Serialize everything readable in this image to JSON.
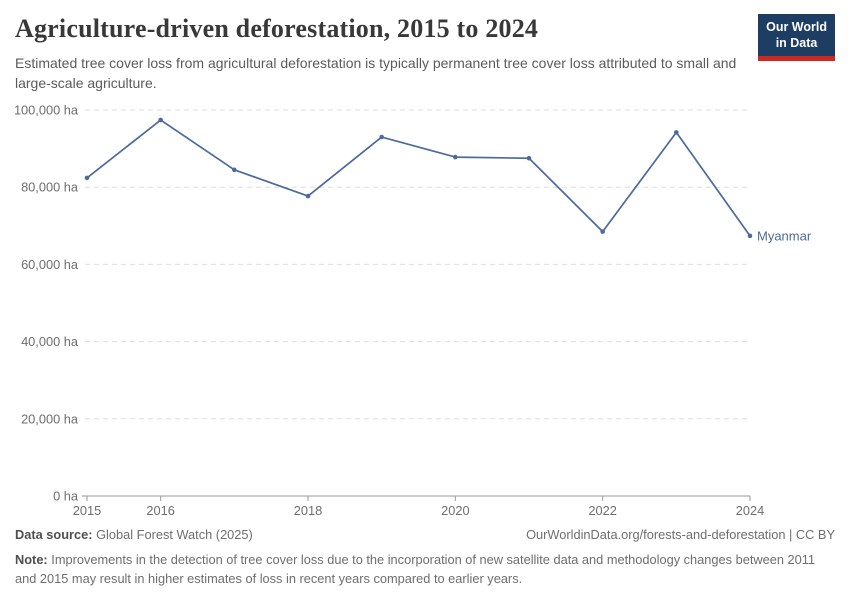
{
  "header": {
    "title": "Agriculture-driven deforestation, 2015 to 2024",
    "subtitle": "Estimated tree cover loss from agricultural deforestation is typically permanent tree cover loss attributed to small and large-scale agriculture.",
    "logo": {
      "line1": "Our World",
      "line2": "in Data"
    }
  },
  "chart_data": {
    "type": "line",
    "title": "Agriculture-driven deforestation, 2015 to 2024",
    "x": [
      2015,
      2016,
      2017,
      2018,
      2019,
      2020,
      2021,
      2022,
      2023,
      2024
    ],
    "series": [
      {
        "name": "Myanmar",
        "color": "#4c6a9c",
        "values": [
          82400,
          97400,
          84500,
          77700,
          93000,
          87800,
          87500,
          68500,
          94200,
          67400
        ]
      }
    ],
    "x_tick_labels": [
      2015,
      2016,
      2018,
      2020,
      2022,
      2024
    ],
    "y_ticks": [
      0,
      20000,
      40000,
      60000,
      80000,
      100000
    ],
    "y_unit": " ha",
    "ylim": [
      0,
      100000
    ],
    "xlabel": "",
    "ylabel": "",
    "grid": "dashed horizontal",
    "legend_position": "end-of-line label"
  },
  "footer": {
    "datasource_label": "Data source:",
    "datasource_value": " Global Forest Watch (2025)",
    "link": "OurWorldinData.org/forests-and-deforestation | CC BY",
    "note_label": "Note:",
    "note_text": " Improvements in the detection of tree cover loss due to the incorporation of new satellite data and methodology changes between 2011 and 2015 may result in higher estimates of loss in recent years compared to earlier years."
  },
  "colors": {
    "line": "#4c6a9c",
    "logo_bg": "#1d3d63",
    "logo_red": "#cc2a21",
    "grid": "#dedede",
    "axis": "#999999",
    "tick_text": "#6e6e6e"
  }
}
